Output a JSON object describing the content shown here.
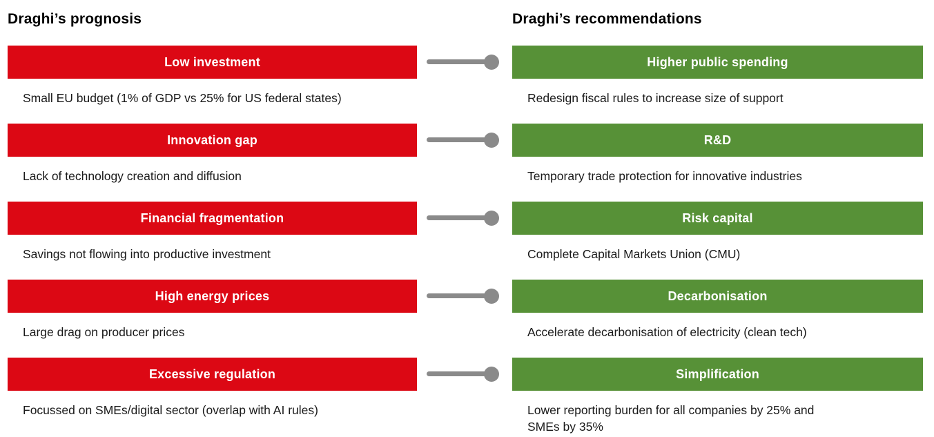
{
  "colors": {
    "prognosis_red": "#DC0814",
    "recommendation_green": "#579137",
    "connector_gray": "#8A8A8A"
  },
  "left_column": {
    "header": "Draghi’s prognosis"
  },
  "right_column": {
    "header": "Draghi’s recommendations"
  },
  "rows": [
    {
      "prognosis": {
        "title": "Low investment",
        "description": "Small EU budget (1% of GDP vs 25% for US federal states)"
      },
      "recommendation": {
        "title": "Higher public spending",
        "description": "Redesign fiscal rules to increase size of support"
      }
    },
    {
      "prognosis": {
        "title": "Innovation gap",
        "description": "Lack of technology creation and diffusion"
      },
      "recommendation": {
        "title": "R&D",
        "description": "Temporary trade protection for innovative industries"
      }
    },
    {
      "prognosis": {
        "title": "Financial fragmentation",
        "description": "Savings not flowing into productive investment"
      },
      "recommendation": {
        "title": "Risk capital",
        "description": "Complete Capital Markets Union (CMU)"
      }
    },
    {
      "prognosis": {
        "title": "High energy prices",
        "description": "Large drag on producer prices"
      },
      "recommendation": {
        "title": "Decarbonisation",
        "description": "Accelerate decarbonisation of electricity (clean tech)"
      }
    },
    {
      "prognosis": {
        "title": "Excessive regulation",
        "description": "Focussed on SMEs/digital sector (overlap with AI rules)"
      },
      "recommendation": {
        "title": "Simplification",
        "description": "Lower reporting burden for all companies by 25% and\nSMEs by 35%"
      }
    }
  ]
}
